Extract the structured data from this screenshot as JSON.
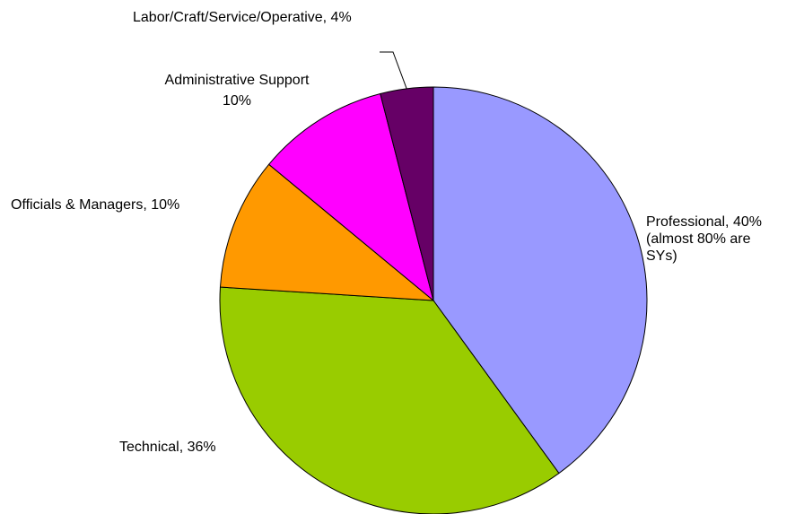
{
  "chart_data": {
    "type": "pie",
    "title": "",
    "start_angle_deg": 0,
    "direction": "clockwise",
    "slices": [
      {
        "category": "Professional",
        "value": 40,
        "color": "#9999FF",
        "label_lines": [
          "Professional, 40%",
          "(almost 80% are",
          "SYs)"
        ]
      },
      {
        "category": "Technical",
        "value": 36,
        "color": "#99CC00",
        "label_lines": [
          "Technical, 36%"
        ]
      },
      {
        "category": "Officials & Managers",
        "value": 10,
        "color": "#FF9900",
        "label_lines": [
          "Officials & Managers, 10%"
        ]
      },
      {
        "category": "Administrative Support",
        "value": 10,
        "color": "#FF00FF",
        "label_lines": [
          "Administrative Support",
          "10%"
        ]
      },
      {
        "category": "Labor/Craft/Service/Operative",
        "value": 4,
        "color": "#660066",
        "label_lines": [
          "Labor/Craft/Service/Operative, 4%"
        ]
      }
    ]
  }
}
